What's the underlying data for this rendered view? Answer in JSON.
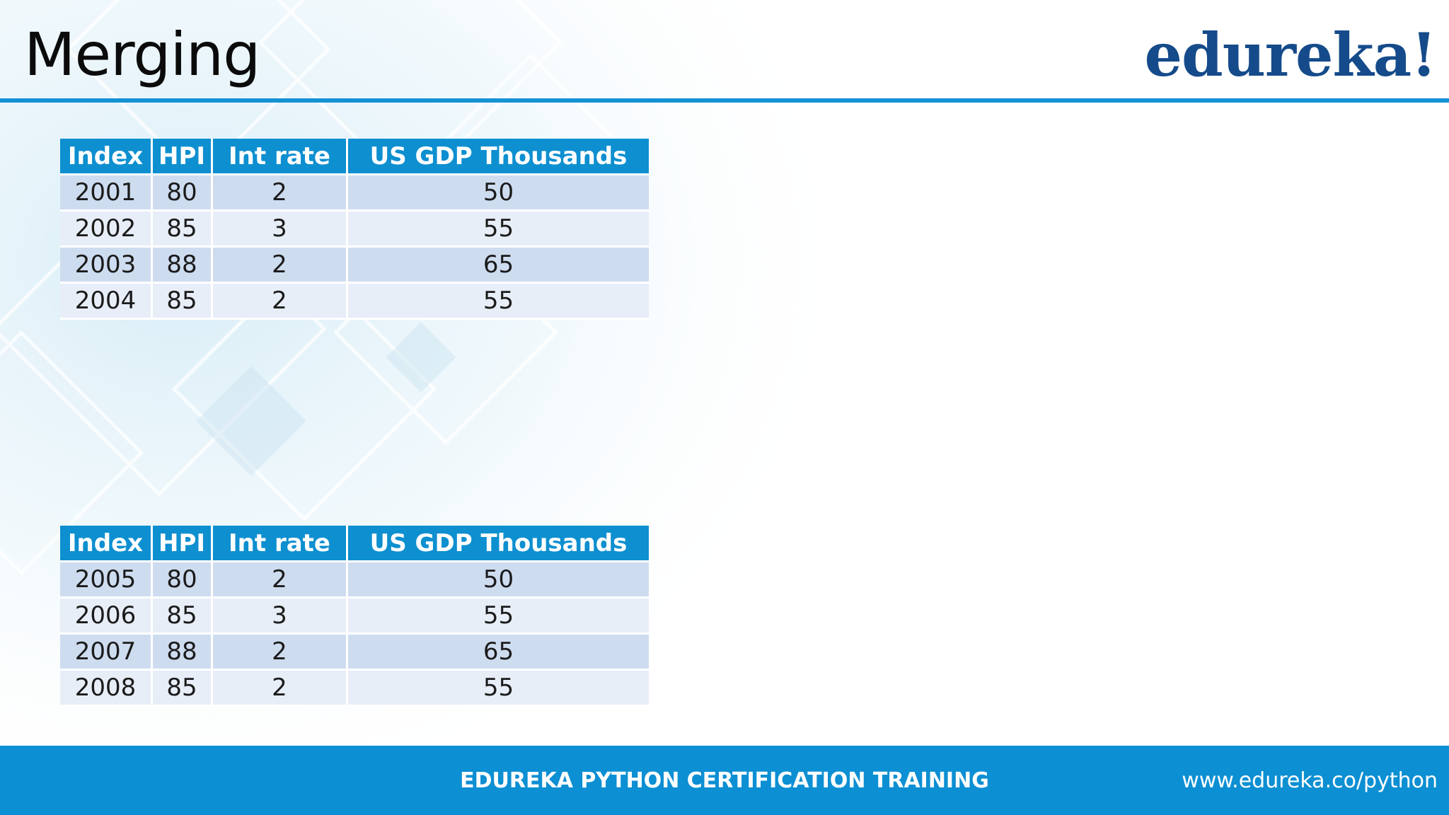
{
  "slide": {
    "title": "Merging",
    "logo_text": "edureka!",
    "footer_title": "EDUREKA PYTHON CERTIFICATION TRAINING",
    "footer_url": "www.edureka.co/python"
  },
  "colors": {
    "header_blue": "#0d8fd0",
    "logo_blue": "#154b8a",
    "row_odd": "#cedcf0",
    "row_even": "#e8eef8"
  },
  "table1": {
    "headers": [
      "Index",
      "HPI",
      "Int rate",
      "US GDP Thousands"
    ],
    "rows": [
      [
        "2001",
        "80",
        "2",
        "50"
      ],
      [
        "2002",
        "85",
        "3",
        "55"
      ],
      [
        "2003",
        "88",
        "2",
        "65"
      ],
      [
        "2004",
        "85",
        "2",
        "55"
      ]
    ]
  },
  "table2": {
    "headers": [
      "Index",
      "HPI",
      "Int rate",
      "US GDP Thousands"
    ],
    "rows": [
      [
        "2005",
        "80",
        "2",
        "50"
      ],
      [
        "2006",
        "85",
        "3",
        "55"
      ],
      [
        "2007",
        "88",
        "2",
        "65"
      ],
      [
        "2008",
        "85",
        "2",
        "55"
      ]
    ]
  }
}
